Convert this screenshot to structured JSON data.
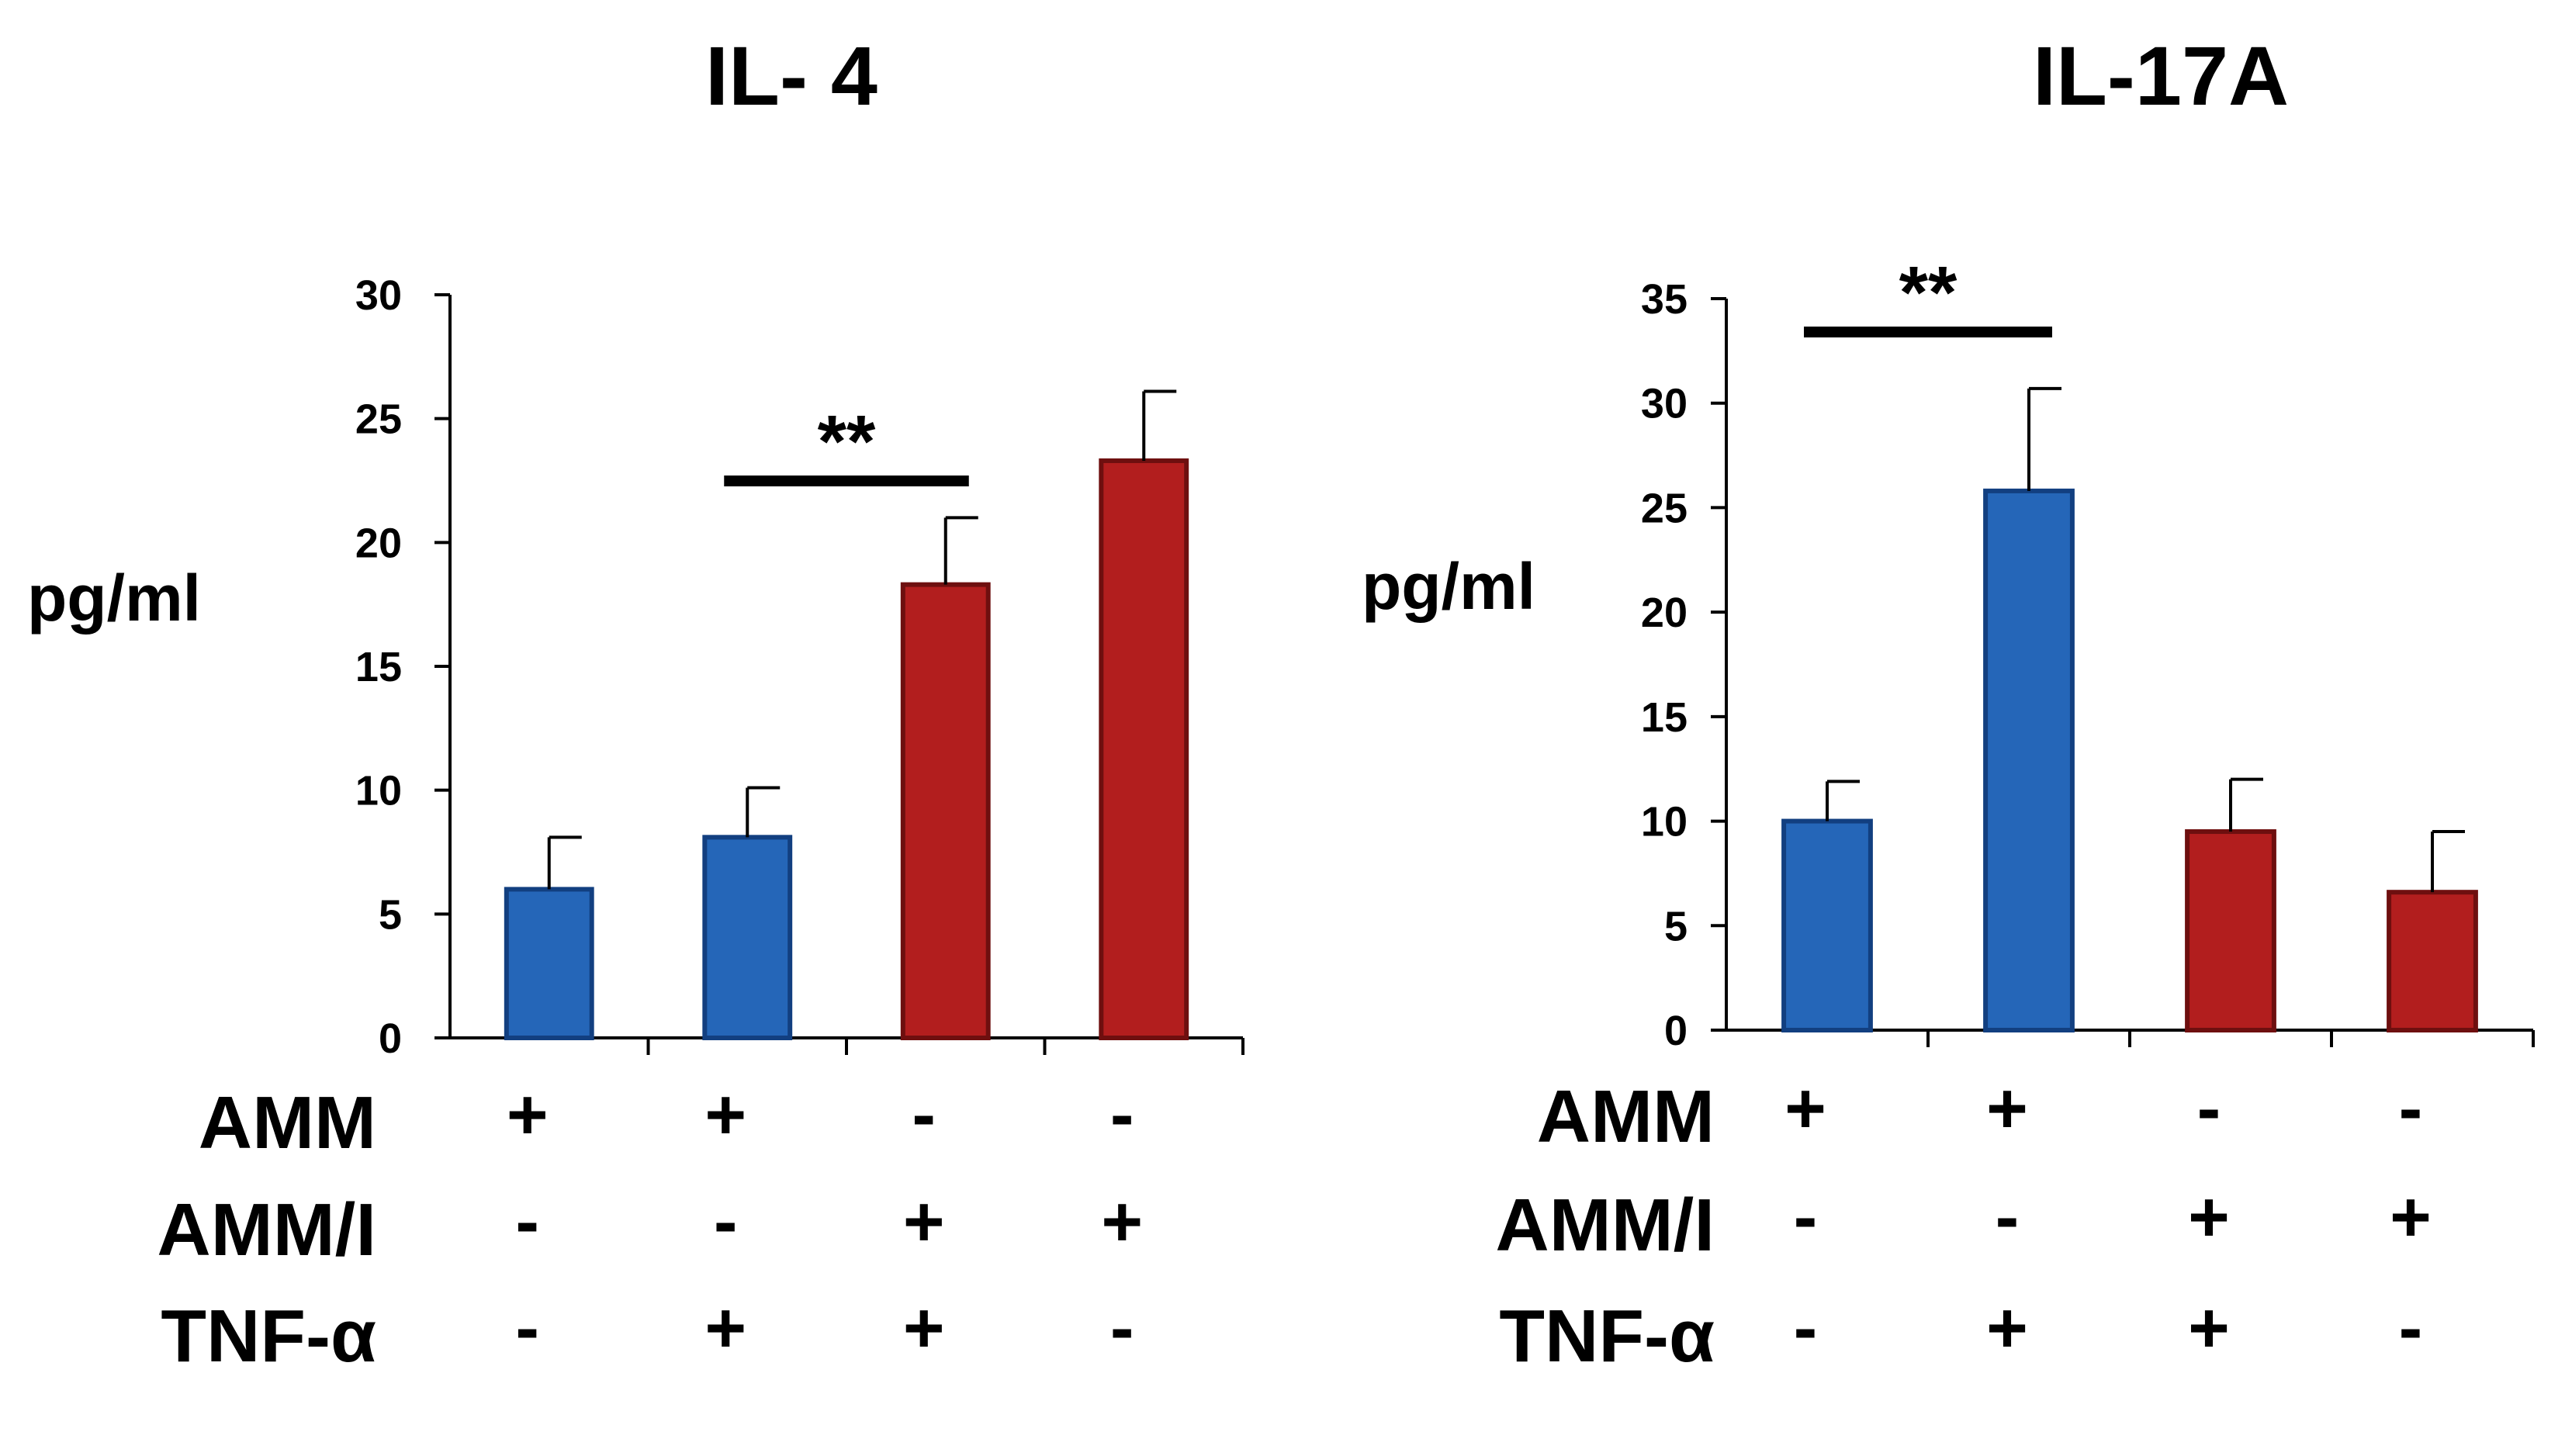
{
  "chart_data": [
    {
      "type": "bar",
      "title": "IL- 4",
      "ylabel": "pg/ml",
      "ylim": [
        0,
        30
      ],
      "yticks": [
        0,
        5,
        10,
        15,
        20,
        25,
        30
      ],
      "values": [
        6,
        8.1,
        18.3,
        23.3
      ],
      "errors": [
        2.1,
        2.0,
        2.7,
        2.8
      ],
      "bar_colors": [
        "#2566b8",
        "#2566b8",
        "#b21e1e",
        "#b21e1e"
      ],
      "significance": {
        "label": "**",
        "between": [
          1,
          2
        ]
      },
      "conditions": [
        {
          "label": "AMM",
          "signs": [
            "+",
            "+",
            "-",
            "-"
          ]
        },
        {
          "label": "AMM/I",
          "signs": [
            "-",
            "-",
            "+",
            "+"
          ]
        },
        {
          "label": "TNF-α",
          "signs": [
            "-",
            "+",
            "+",
            "-"
          ]
        }
      ]
    },
    {
      "type": "bar",
      "title": "IL-17A",
      "ylabel": "pg/ml",
      "ylim": [
        0,
        35
      ],
      "yticks": [
        0,
        5,
        10,
        15,
        20,
        25,
        30,
        35
      ],
      "values": [
        10,
        25.8,
        9.5,
        6.6
      ],
      "errors": [
        1.9,
        4.9,
        2.5,
        2.9
      ],
      "bar_colors": [
        "#2566b8",
        "#2566b8",
        "#b21e1e",
        "#b21e1e"
      ],
      "significance": {
        "label": "**",
        "between": [
          0,
          1
        ]
      },
      "conditions": [
        {
          "label": "AMM",
          "signs": [
            "+",
            "+",
            "-",
            "-"
          ]
        },
        {
          "label": "AMM/I",
          "signs": [
            "-",
            "-",
            "+",
            "+"
          ]
        },
        {
          "label": "TNF-α",
          "signs": [
            "-",
            "+",
            "+",
            "-"
          ]
        }
      ]
    }
  ]
}
